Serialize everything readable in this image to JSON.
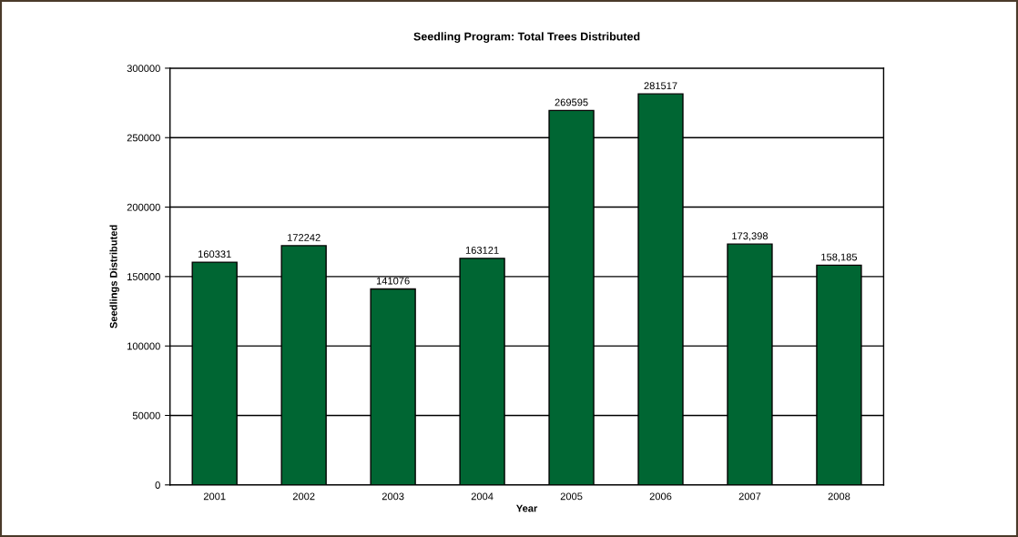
{
  "chart_data": {
    "type": "bar",
    "title": "Seedling Program: Total Trees Distributed",
    "xlabel": "Year",
    "ylabel": "Seedlings Distributed",
    "categories": [
      "2001",
      "2002",
      "2003",
      "2004",
      "2005",
      "2006",
      "2007",
      "2008"
    ],
    "values": [
      160331,
      172242,
      141076,
      163121,
      269595,
      281517,
      173398,
      158185
    ],
    "value_labels": [
      "160331",
      "172242",
      "141076",
      "163121",
      "269595",
      "281517",
      "173,398",
      "158,185"
    ],
    "color": "#006633",
    "ylim": [
      0,
      300000
    ],
    "yticks": [
      0,
      50000,
      100000,
      150000,
      200000,
      250000,
      300000
    ],
    "grid": "y"
  }
}
